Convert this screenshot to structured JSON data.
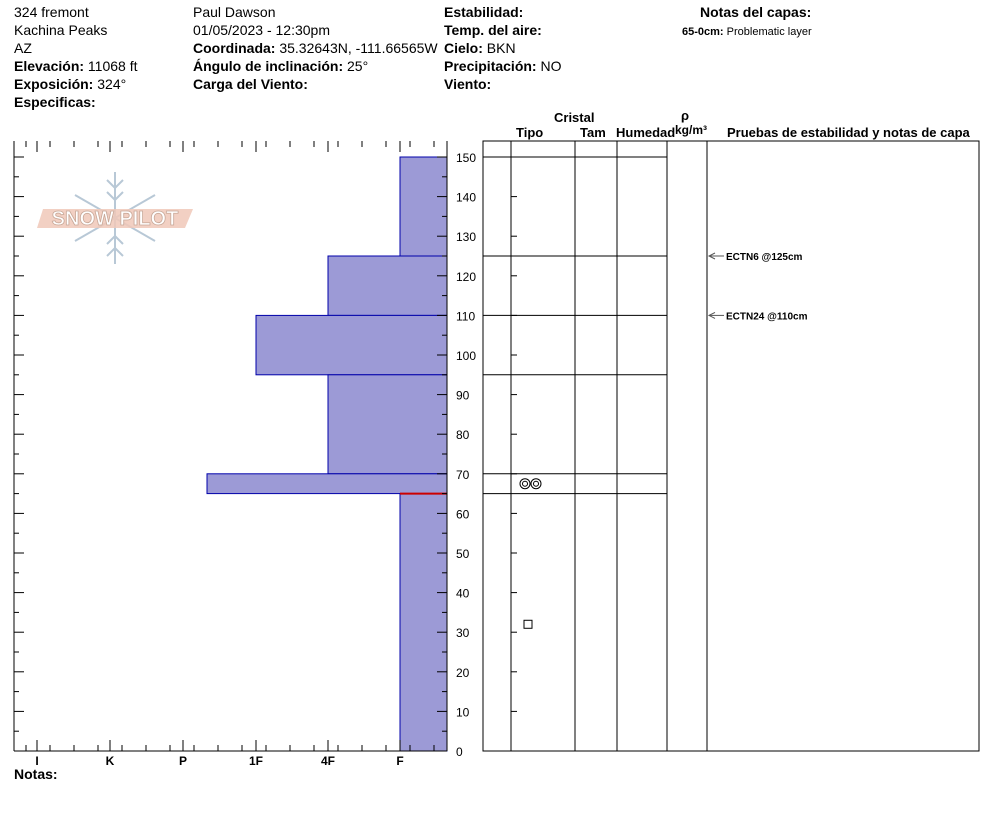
{
  "header": {
    "location": "324 fremont",
    "area": "Kachina Peaks",
    "state": "AZ",
    "elevation_label": "Elevación:",
    "elevation_value": "11068 ft",
    "aspect_label": "Exposición:",
    "aspect_value": "324°",
    "specifics_label": "Especificas:",
    "observer": "Paul Dawson",
    "datetime": "01/05/2023 - 12:30pm",
    "coord_label": "Coordinada:",
    "coord_value": "35.32643N, -111.66565W",
    "slope_label": "Ángulo de inclinación:",
    "slope_value": "25°",
    "wind_load_label": "Carga del Viento:",
    "stability_label": "Estabilidad:",
    "air_temp_label": "Temp. del aire:",
    "sky_label": "Cielo:",
    "sky_value": "BKN",
    "precip_label": "Precipitación:",
    "precip_value": "NO",
    "wind_label": "Viento:",
    "layer_notes_label": "Notas del capas:",
    "layer_note_depth": "65-0cm:",
    "layer_note_text": "Problematic layer"
  },
  "logo_text": "SNOW PILOT",
  "notes_label": "Notas:",
  "columns": {
    "crystal": "Cristal",
    "type": "Tipo",
    "size": "Tam",
    "moisture": "Humedad",
    "rho": "ρ",
    "density_unit": "kg/m³",
    "tests": "Pruebas de estabilidad y notas de capa"
  },
  "chart_data": {
    "type": "bar",
    "orientation": "horizontal",
    "description_axis": "hardness",
    "hardness_categories": [
      "I",
      "K",
      "P",
      "1F",
      "4F",
      "F"
    ],
    "y_axis": {
      "min": 0,
      "max": 150,
      "ticks": [
        0,
        10,
        20,
        30,
        40,
        50,
        60,
        70,
        80,
        90,
        100,
        110,
        120,
        130,
        140,
        150
      ],
      "unit": "cm"
    },
    "colors": {
      "bar_fill": "#9c9ad6",
      "bar_stroke": "#0000aa",
      "problem_line": "#cc0000"
    },
    "layers": [
      {
        "top": 150,
        "bottom": 125,
        "hardness": "F"
      },
      {
        "top": 125,
        "bottom": 110,
        "hardness": "4F"
      },
      {
        "top": 110,
        "bottom": 95,
        "hardness": "1F"
      },
      {
        "top": 95,
        "bottom": 70,
        "hardness": "4F"
      },
      {
        "top": 70,
        "bottom": 65,
        "hardness": "P-"
      },
      {
        "top": 65,
        "bottom": 0,
        "hardness": "F"
      }
    ],
    "problem_layer_depth": 65,
    "layer_boundaries": [
      150,
      125,
      110,
      95,
      70,
      65
    ],
    "grain_symbols": [
      {
        "depth": 67.5,
        "symbol": "rounded-grains-icon"
      },
      {
        "depth": 32,
        "symbol": "faceted-crystals-icon"
      }
    ],
    "stability_tests": [
      {
        "depth": 125,
        "label": "ECTN6 @125cm"
      },
      {
        "depth": 110,
        "label": "ECTN24 @110cm"
      }
    ]
  }
}
